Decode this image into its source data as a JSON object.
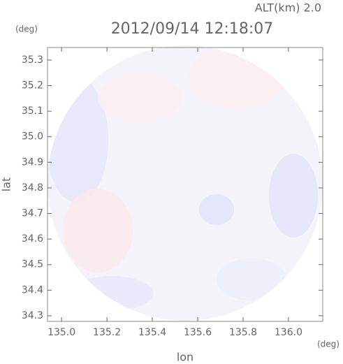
{
  "chart_data": {
    "type": "radar-field",
    "title": "2012/09/14 12:18:07",
    "subtitle": "ALT(km) 2.0",
    "x_unit": "(deg)",
    "y_unit": "(deg)",
    "xlabel": "lon",
    "ylabel": "lat",
    "xlim": [
      134.938,
      136.151
    ],
    "ylim": [
      34.278,
      35.349
    ],
    "xticks": [
      {
        "value": 135.0,
        "label": "135.0"
      },
      135.2,
      135.4,
      135.6,
      135.8,
      {
        "value": 136.0,
        "label": "136.0"
      }
    ],
    "yticks": [
      34.3,
      34.4,
      34.5,
      34.6,
      34.7,
      34.8,
      34.9,
      {
        "value": 35.0,
        "label": "35.0"
      },
      35.1,
      35.2,
      35.3
    ]
  }
}
